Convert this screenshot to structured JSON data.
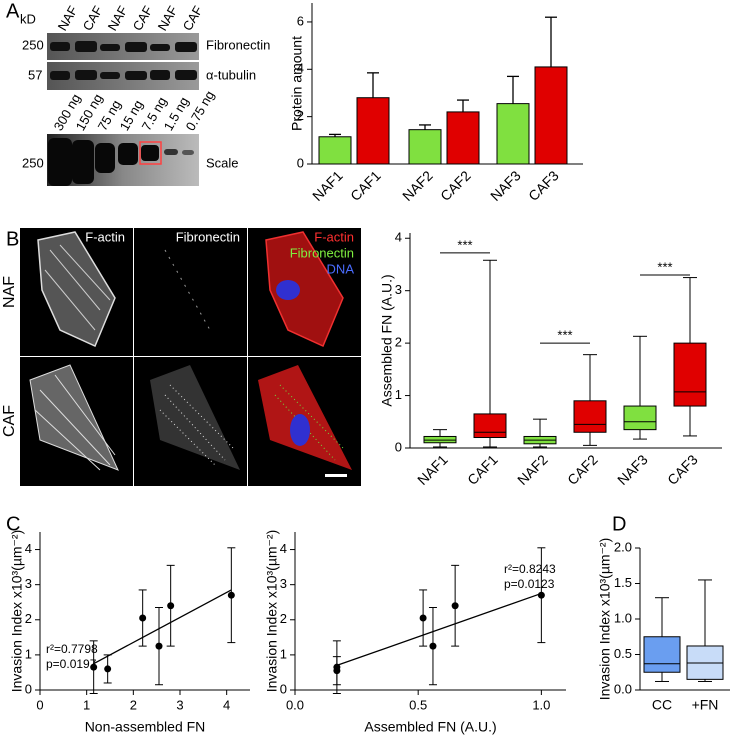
{
  "panels": [
    "A",
    "B",
    "C",
    "D"
  ],
  "blot": {
    "unit": "kD",
    "lanes": [
      "NAF",
      "CAF",
      "NAF",
      "CAF",
      "NAF",
      "CAF"
    ],
    "rows": [
      {
        "marker": "250",
        "label": "Fibronectin"
      },
      {
        "marker": "57",
        "label": "α-tubulin"
      }
    ],
    "scale_lanes": [
      "300 ng",
      "150 ng",
      "75 ng",
      "15 ng",
      "7.5 ng",
      "1.5 ng",
      "0.75 ng"
    ],
    "scale_marker": "250",
    "scale_label": "Scale"
  },
  "microscopy": {
    "columns": [
      "F-actin",
      "Fibronectin"
    ],
    "overlay": [
      "F-actin",
      "Fibronectin",
      "DNA"
    ],
    "rows": [
      "NAF",
      "CAF"
    ]
  },
  "chart_data": [
    {
      "type": "bar",
      "ylabel": "Protein amount",
      "categories": [
        "NAF1",
        "CAF1",
        "NAF2",
        "CAF2",
        "NAF3",
        "CAF3"
      ],
      "values": [
        1.15,
        2.8,
        1.45,
        2.2,
        2.55,
        4.1
      ],
      "errors": [
        0.1,
        1.05,
        0.2,
        0.5,
        1.15,
        2.1
      ],
      "colors": [
        "#80e040",
        "#e00000",
        "#80e040",
        "#e00000",
        "#80e040",
        "#e00000"
      ],
      "ylim": [
        0,
        6.8
      ],
      "yticks": [
        0,
        2,
        4,
        6
      ]
    },
    {
      "type": "box",
      "ylabel": "Assembled FN (A.U.)",
      "categories": [
        "NAF1",
        "CAF1",
        "NAF2",
        "CAF2",
        "NAF3",
        "CAF3"
      ],
      "boxes": [
        {
          "whislo": 0.02,
          "q1": 0.1,
          "med": 0.15,
          "q3": 0.22,
          "whishi": 0.35
        },
        {
          "whislo": 0.02,
          "q1": 0.2,
          "med": 0.3,
          "q3": 0.65,
          "whishi": 3.58
        },
        {
          "whislo": 0.02,
          "q1": 0.08,
          "med": 0.15,
          "q3": 0.22,
          "whishi": 0.55
        },
        {
          "whislo": 0.05,
          "q1": 0.3,
          "med": 0.45,
          "q3": 0.9,
          "whishi": 1.78
        },
        {
          "whislo": 0.17,
          "q1": 0.35,
          "med": 0.5,
          "q3": 0.8,
          "whishi": 2.13
        },
        {
          "whislo": 0.23,
          "q1": 0.8,
          "med": 1.07,
          "q3": 2.0,
          "whishi": 3.25
        }
      ],
      "colors": [
        "#80e040",
        "#e00000",
        "#80e040",
        "#e00000",
        "#80e040",
        "#e00000"
      ],
      "significance": [
        {
          "text": "***",
          "y": 3.72
        },
        {
          "text": "***",
          "y": 2.0
        },
        {
          "text": "***",
          "y": 3.3
        }
      ],
      "ylim": [
        0,
        4.1
      ],
      "yticks": [
        0,
        1,
        2,
        3,
        4
      ]
    },
    {
      "type": "scatter",
      "xlabel": "Non-assembled FN",
      "ylabel": "Invasion Index x10³(µm⁻²)",
      "x": [
        1.15,
        1.45,
        2.2,
        2.55,
        2.8,
        4.1
      ],
      "y": [
        0.65,
        0.6,
        2.05,
        1.25,
        2.4,
        2.7
      ],
      "errors": [
        0.75,
        0.4,
        0.8,
        1.1,
        1.15,
        1.35
      ],
      "fit": {
        "x": [
          1.15,
          4.1
        ],
        "y": [
          0.75,
          2.85
        ]
      },
      "annotations": [
        "r²=0.7798",
        "p=0.0197"
      ],
      "xlim": [
        0,
        4.5
      ],
      "xticks": [
        0,
        1,
        2,
        3,
        4
      ],
      "ylim": [
        0,
        4.5
      ],
      "yticks": [
        0,
        1,
        2,
        3,
        4
      ]
    },
    {
      "type": "scatter",
      "xlabel": "Assembled FN (A.U.)",
      "ylabel": "Invasion Index x10³(µm⁻²)",
      "x": [
        0.17,
        0.17,
        0.52,
        0.56,
        0.65,
        1.0
      ],
      "y": [
        0.65,
        0.55,
        2.05,
        1.25,
        2.4,
        2.7
      ],
      "errors": [
        0.75,
        0.4,
        0.8,
        1.1,
        1.15,
        1.35
      ],
      "fit": {
        "x": [
          0.17,
          1.0
        ],
        "y": [
          0.7,
          2.75
        ]
      },
      "annotations": [
        "r²=0.8243",
        "p=0.0123"
      ],
      "xlim": [
        0,
        1.1
      ],
      "xticks": [
        {
          "value": 0,
          "label": "0.0"
        },
        {
          "value": 0.5,
          "label": "0.5"
        },
        {
          "value": 1,
          "label": "1.0"
        }
      ],
      "ylim": [
        0,
        4.5
      ],
      "yticks": [
        0,
        1,
        2,
        3,
        4
      ]
    },
    {
      "type": "box",
      "ylabel": "Invasion Index x10³(µm⁻²)",
      "categories": [
        "CC",
        "+FN"
      ],
      "boxes": [
        {
          "whislo": 0.12,
          "q1": 0.25,
          "med": 0.37,
          "q3": 0.75,
          "whishi": 1.3
        },
        {
          "whislo": 0.12,
          "q1": 0.15,
          "med": 0.38,
          "q3": 0.62,
          "whishi": 1.55
        }
      ],
      "colors": [
        "#6a9ef0",
        "#c8dcf8"
      ],
      "ylim": [
        0,
        2
      ],
      "yticks": [
        {
          "value": 0,
          "label": "0.0"
        },
        {
          "value": 0.5,
          "label": "0.5"
        },
        {
          "value": 1,
          "label": "1.0"
        },
        {
          "value": 1.5,
          "label": "1.5"
        },
        {
          "value": 2,
          "label": "2.0"
        }
      ]
    }
  ]
}
